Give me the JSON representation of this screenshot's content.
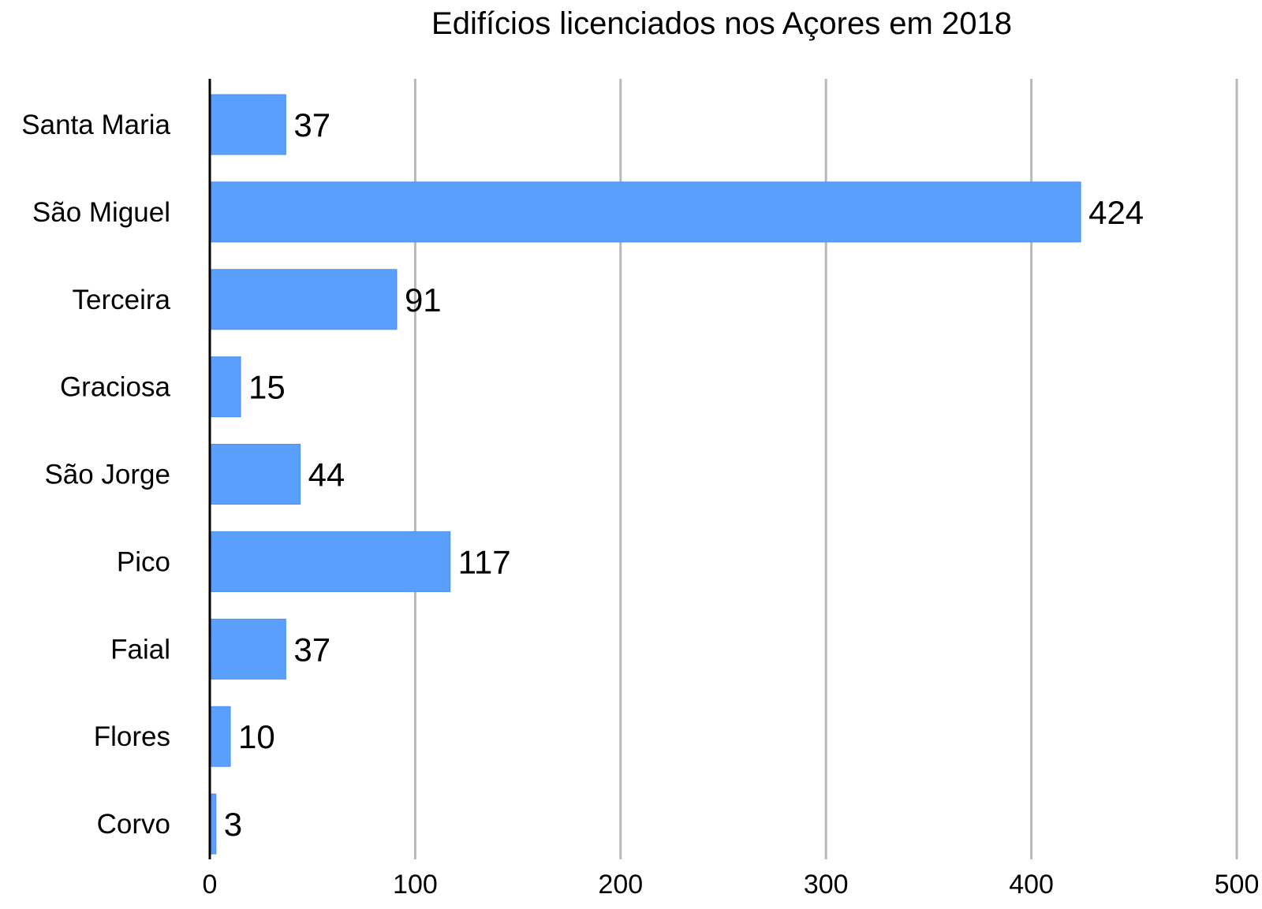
{
  "chart_data": {
    "type": "bar",
    "orientation": "horizontal",
    "title": "Edifícios licenciados nos Açores em 2018",
    "xlabel": "",
    "ylabel": "",
    "categories": [
      "Santa Maria",
      "São Miguel",
      "Terceira",
      "Graciosa",
      "São Jorge",
      "Pico",
      "Faial",
      "Flores",
      "Corvo"
    ],
    "values": [
      37,
      424,
      91,
      15,
      44,
      117,
      37,
      10,
      3
    ],
    "data_labels": [
      "37",
      "424",
      "91",
      "15",
      "44",
      "117",
      "37",
      "10",
      "3"
    ],
    "xlim": [
      0,
      500
    ],
    "xticks": [
      0,
      100,
      200,
      300,
      400,
      500
    ],
    "xtick_labels": [
      "0",
      "100",
      "200",
      "300",
      "400",
      "500"
    ],
    "grid": "vertical",
    "legend": "none",
    "colors": {
      "bar": "#5b9ffd",
      "bar_edge": "#4a8ff0",
      "grid": "#b8b8b8",
      "axis": "#000000",
      "text": "#000000"
    }
  }
}
